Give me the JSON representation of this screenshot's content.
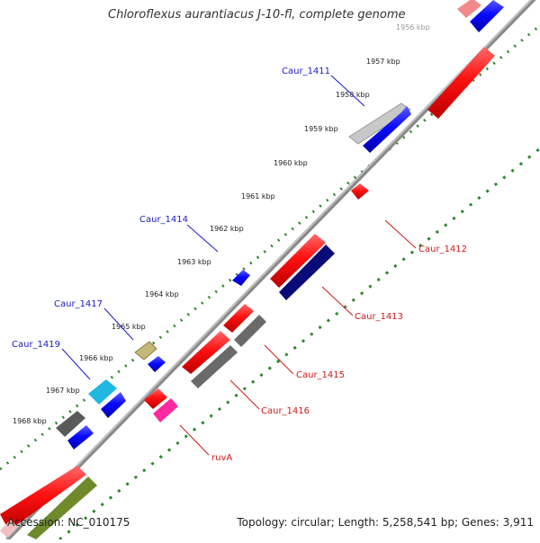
{
  "title": "Chloroflexus aurantiacus J-10-fl, complete genome",
  "footer": {
    "accession": "Accession: NC_010175",
    "summary": "Topology: circular; Length: 5,258,541 bp; Genes: 3,911"
  },
  "colors": {
    "backbone": "#8a8a8a",
    "tick_dots": "#2a8a2a",
    "forward_label": "#1a1acc",
    "reverse_label": "#cc1a1a"
  },
  "kbp_ticks": [
    {
      "label": "1956 kbp"
    },
    {
      "label": "1957 kbp"
    },
    {
      "label": "1958 kbp"
    },
    {
      "label": "1959 kbp"
    },
    {
      "label": "1960 kbp"
    },
    {
      "label": "1961 kbp"
    },
    {
      "label": "1962 kbp"
    },
    {
      "label": "1963 kbp"
    },
    {
      "label": "1964 kbp"
    },
    {
      "label": "1965 kbp"
    },
    {
      "label": "1966 kbp"
    },
    {
      "label": "1967 kbp"
    },
    {
      "label": "1968 kbp"
    }
  ],
  "gene_labels": {
    "forward": [
      "Caur_1411",
      "Caur_1414",
      "Caur_1417",
      "Caur_1419"
    ],
    "reverse": [
      "Caur_1412",
      "Caur_1413",
      "Caur_1415",
      "Caur_1416",
      "ruvA"
    ]
  }
}
